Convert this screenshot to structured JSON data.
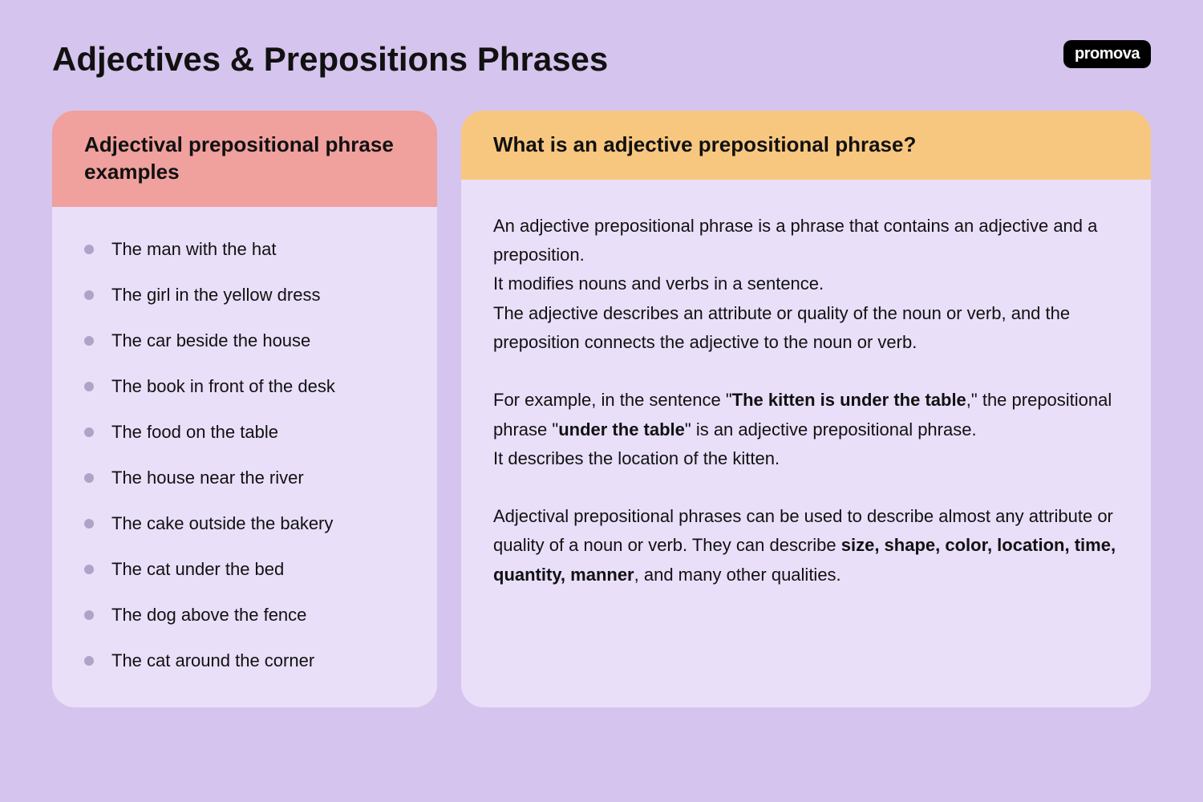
{
  "colors": {
    "page_bg": "#d5c4ed",
    "card_bg": "#e9dff9",
    "header_pink": "#f0a09d",
    "header_orange": "#f8c77f",
    "bullet": "#b0a3c8",
    "logo_bg": "#000000",
    "logo_text": "#ffffff",
    "text": "#111111"
  },
  "logo": "promova",
  "main_title": "Adjectives & Prepositions Phrases",
  "left": {
    "header": "Adjectival prepositional phrase examples",
    "examples": [
      "The man with the hat",
      "The girl in the yellow dress",
      "The car beside the house",
      "The book in front of the desk",
      "The food on the table",
      "The house near the river",
      "The cake outside the bakery",
      "The cat under the bed",
      "The dog above the fence",
      "The cat around the corner"
    ]
  },
  "right": {
    "header": "What is an adjective prepositional phrase?",
    "p1": "An adjective prepositional phrase is a phrase that contains an adjective and a preposition.<br>It modifies nouns and verbs in a sentence.<br>The adjective describes an attribute or quality of the noun or verb, and the preposition connects the adjective to the noun or verb.",
    "p2": "For example, in the sentence \"<b>The kitten is under the table</b>,\" the prepositional phrase \"<b>under the table</b>\" is an adjective prepositional phrase.<br>It describes the location of the kitten.",
    "p3": "Adjectival prepositional phrases can be used to describe almost any attribute or quality of a noun or verb. They can describe <b>size, shape, color, location, time, quantity, manner</b>, and many other qualities."
  }
}
